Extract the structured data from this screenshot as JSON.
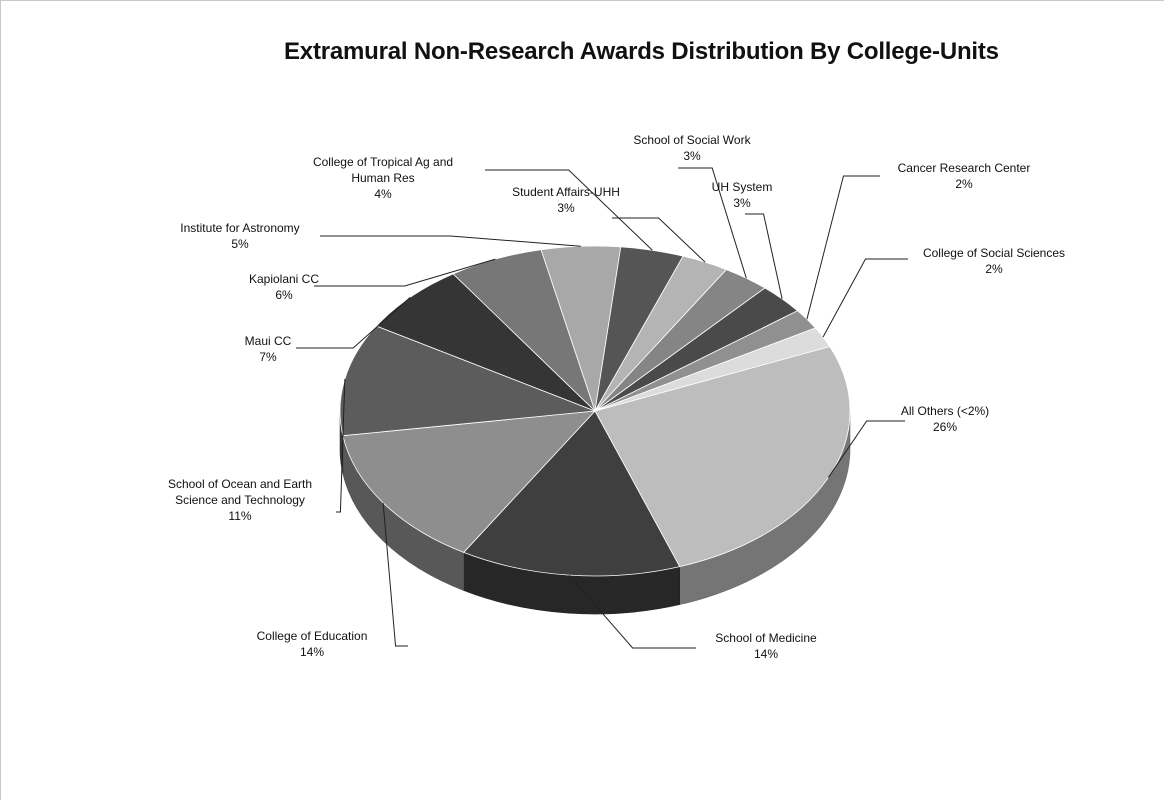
{
  "chart_data": {
    "type": "pie",
    "title": "Extramural Non-Research Awards Distribution By College-Units",
    "slices": [
      {
        "name": "All Others (<2%)",
        "label_lines": [
          "All Others (<2%)"
        ],
        "pct_label": "26%",
        "value": 26,
        "color": "#bdbdbd"
      },
      {
        "name": "School of Medicine",
        "label_lines": [
          "School of Medicine"
        ],
        "pct_label": "14%",
        "value": 14,
        "color": "#3f3f3f"
      },
      {
        "name": "College of Education",
        "label_lines": [
          "College of Education"
        ],
        "pct_label": "14%",
        "value": 14,
        "color": "#8e8e8e"
      },
      {
        "name": "School of Ocean and Earth Science and Technology",
        "label_lines": [
          "School of Ocean and Earth",
          "Science and Technology"
        ],
        "pct_label": "11%",
        "value": 11,
        "color": "#5c5c5c"
      },
      {
        "name": "Maui CC",
        "label_lines": [
          "Maui CC"
        ],
        "pct_label": "7%",
        "value": 7,
        "color": "#353535"
      },
      {
        "name": "Kapiolani CC",
        "label_lines": [
          "Kapiolani CC"
        ],
        "pct_label": "6%",
        "value": 6,
        "color": "#777777"
      },
      {
        "name": "Institute for Astronomy",
        "label_lines": [
          "Institute for Astronomy"
        ],
        "pct_label": "5%",
        "value": 5,
        "color": "#a8a8a8"
      },
      {
        "name": "College of Tropical Ag and Human Res",
        "label_lines": [
          "College of Tropical Ag and",
          "Human Res"
        ],
        "pct_label": "4%",
        "value": 4,
        "color": "#555555"
      },
      {
        "name": "Student Affairs-UHH",
        "label_lines": [
          "Student Affairs-UHH"
        ],
        "pct_label": "3%",
        "value": 3,
        "color": "#b4b4b4"
      },
      {
        "name": "School of Social Work",
        "label_lines": [
          "School of Social Work"
        ],
        "pct_label": "3%",
        "value": 3,
        "color": "#858585"
      },
      {
        "name": "UH System",
        "label_lines": [
          "UH System"
        ],
        "pct_label": "3%",
        "value": 3,
        "color": "#4a4a4a"
      },
      {
        "name": "Cancer Research Center",
        "label_lines": [
          "Cancer Research Center"
        ],
        "pct_label": "2%",
        "value": 2,
        "color": "#909090"
      },
      {
        "name": "College of Social Sciences",
        "label_lines": [
          "College of Social Sciences"
        ],
        "pct_label": "2%",
        "value": 2,
        "color": "#dcdcdc"
      }
    ],
    "legend": "none",
    "style": "3d-pie"
  }
}
